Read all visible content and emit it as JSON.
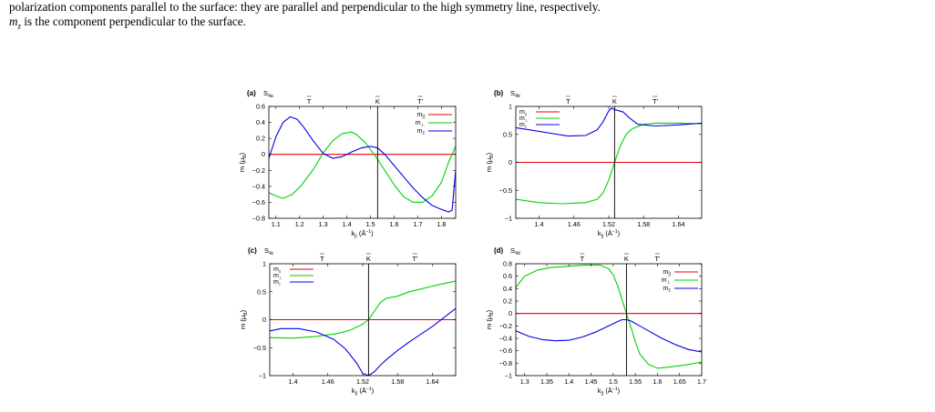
{
  "caption": {
    "line1": "polarization components parallel to the surface: they are parallel and perpendicular to the high symmetry line, respectively.",
    "line2_symbol": "m",
    "line2_sub": "z",
    "line2_rest": " is the component perpendicular to the surface."
  },
  "chart_data": [
    {
      "panel": "(a)",
      "label": "S",
      "label_sub": "4a",
      "type": "line",
      "xlabel_main": "k",
      "xlabel_sub": "||",
      "xlabel_unit": " (Å",
      "xlabel_exp": "−1",
      "xlabel_close": ")",
      "ylabel": "m (μ",
      "ylabel_sub": "B",
      "ylabel_close": ")",
      "xlim": [
        1.07,
        1.86
      ],
      "ylim": [
        -0.8,
        0.6
      ],
      "xticks": [
        1.1,
        1.2,
        1.3,
        1.4,
        1.5,
        1.6,
        1.7,
        1.8
      ],
      "xtick_labels": [
        "1.1",
        "1.2",
        "1.3",
        "1.4",
        "1.5",
        "1.6",
        "1.7",
        "1.8"
      ],
      "yticks": [
        -0.8,
        -0.6,
        -0.4,
        -0.2,
        0,
        0.2,
        0.4,
        0.6
      ],
      "ytick_labels": [
        "−0.8",
        "−0.6",
        "−0.4",
        "−0.2",
        "0",
        "0.2",
        "0.4",
        "0.6"
      ],
      "vline": 1.53,
      "top_labels": [
        {
          "text": "T",
          "x": 1.24
        },
        {
          "text": "K",
          "x": 1.53
        },
        {
          "text": "T'",
          "x": 1.71
        }
      ],
      "legend": [
        "m||",
        "m⊥",
        "mz"
      ],
      "series": [
        {
          "name": "m||",
          "color": "#e8000b",
          "x": [
            1.07,
            1.86
          ],
          "y": [
            0,
            0
          ]
        },
        {
          "name": "m⊥",
          "color": "#00d200",
          "x": [
            1.07,
            1.1,
            1.13,
            1.17,
            1.21,
            1.26,
            1.3,
            1.34,
            1.38,
            1.42,
            1.44,
            1.48,
            1.52,
            1.56,
            1.6,
            1.64,
            1.68,
            1.72,
            1.76,
            1.8,
            1.83,
            1.86
          ],
          "y": [
            -0.48,
            -0.52,
            -0.55,
            -0.5,
            -0.38,
            -0.18,
            0.02,
            0.17,
            0.26,
            0.28,
            0.25,
            0.14,
            -0.02,
            -0.2,
            -0.38,
            -0.53,
            -0.6,
            -0.6,
            -0.52,
            -0.35,
            -0.1,
            0.1
          ]
        },
        {
          "name": "mz",
          "color": "#0000e6",
          "x": [
            1.07,
            1.1,
            1.13,
            1.16,
            1.19,
            1.22,
            1.26,
            1.3,
            1.34,
            1.38,
            1.42,
            1.46,
            1.5,
            1.53,
            1.56,
            1.6,
            1.64,
            1.68,
            1.72,
            1.76,
            1.8,
            1.83,
            1.845,
            1.86
          ],
          "y": [
            -0.05,
            0.22,
            0.4,
            0.47,
            0.44,
            0.33,
            0.16,
            0.01,
            -0.05,
            -0.03,
            0.03,
            0.08,
            0.1,
            0.08,
            0.0,
            -0.14,
            -0.28,
            -0.42,
            -0.54,
            -0.64,
            -0.69,
            -0.72,
            -0.7,
            -0.2
          ]
        }
      ]
    },
    {
      "panel": "(b)",
      "label": "S",
      "label_sub": "4b",
      "type": "line",
      "xlabel_main": "k",
      "xlabel_sub": "||",
      "xlabel_unit": " (Å",
      "xlabel_exp": "−1",
      "xlabel_close": ")",
      "ylabel": "m (μ",
      "ylabel_sub": "B",
      "ylabel_close": ")",
      "xlim": [
        1.36,
        1.68
      ],
      "ylim": [
        -1,
        1
      ],
      "xticks": [
        1.4,
        1.46,
        1.52,
        1.58,
        1.64
      ],
      "xtick_labels": [
        "1.4",
        "1.46",
        "1.52",
        "1.58",
        "1.64"
      ],
      "yticks": [
        -1,
        -0.5,
        0,
        0.5,
        1
      ],
      "ytick_labels": [
        "−1",
        "−0.5",
        "0",
        "0.5",
        "1"
      ],
      "vline": 1.53,
      "top_labels": [
        {
          "text": "T",
          "x": 1.45
        },
        {
          "text": "K",
          "x": 1.53
        },
        {
          "text": "T'",
          "x": 1.6
        }
      ],
      "legend": [
        "m||",
        "m⊥",
        "mz"
      ],
      "series": [
        {
          "name": "m||",
          "color": "#e8000b",
          "x": [
            1.36,
            1.68
          ],
          "y": [
            0,
            0
          ]
        },
        {
          "name": "m⊥",
          "color": "#00d200",
          "x": [
            1.36,
            1.4,
            1.44,
            1.48,
            1.5,
            1.51,
            1.52,
            1.53,
            1.54,
            1.55,
            1.56,
            1.58,
            1.6,
            1.64,
            1.68
          ],
          "y": [
            -0.66,
            -0.72,
            -0.74,
            -0.72,
            -0.66,
            -0.55,
            -0.32,
            0.0,
            0.3,
            0.5,
            0.6,
            0.68,
            0.7,
            0.7,
            0.69
          ]
        },
        {
          "name": "mz",
          "color": "#0000e6",
          "x": [
            1.36,
            1.39,
            1.42,
            1.45,
            1.48,
            1.5,
            1.51,
            1.52,
            1.525,
            1.53,
            1.535,
            1.545,
            1.555,
            1.57,
            1.6,
            1.64,
            1.68
          ],
          "y": [
            0.62,
            0.57,
            0.52,
            0.47,
            0.48,
            0.58,
            0.72,
            0.92,
            0.97,
            0.94,
            0.93,
            0.9,
            0.8,
            0.68,
            0.65,
            0.67,
            0.7
          ]
        }
      ]
    },
    {
      "panel": "(c)",
      "label": "S",
      "label_sub": "4c",
      "type": "line",
      "xlabel_main": "k",
      "xlabel_sub": "||",
      "xlabel_unit": " (Å",
      "xlabel_exp": "−1",
      "xlabel_close": ")",
      "ylabel": "m (μ",
      "ylabel_sub": "B",
      "ylabel_close": ")",
      "xlim": [
        1.36,
        1.68
      ],
      "ylim": [
        -1,
        1
      ],
      "xticks": [
        1.4,
        1.46,
        1.52,
        1.58,
        1.64
      ],
      "xtick_labels": [
        "1.4",
        "1.46",
        "1.52",
        "1.58",
        "1.64"
      ],
      "yticks": [
        -1,
        -0.5,
        0,
        0.5,
        1
      ],
      "ytick_labels": [
        "−1",
        "−0.5",
        "0",
        "0.5",
        "1"
      ],
      "vline": 1.53,
      "top_labels": [
        {
          "text": "T",
          "x": 1.45
        },
        {
          "text": "K",
          "x": 1.53
        },
        {
          "text": "T'",
          "x": 1.61
        }
      ],
      "legend": [
        "m||",
        "m⊥",
        "mz"
      ],
      "series": [
        {
          "name": "m||",
          "color": "#e8000b",
          "x": [
            1.36,
            1.68
          ],
          "y": [
            0,
            0
          ]
        },
        {
          "name": "m⊥",
          "color": "#00d200",
          "x": [
            1.36,
            1.4,
            1.44,
            1.48,
            1.5,
            1.52,
            1.53,
            1.54,
            1.55,
            1.56,
            1.58,
            1.6,
            1.64,
            1.68
          ],
          "y": [
            -0.32,
            -0.33,
            -0.3,
            -0.24,
            -0.18,
            -0.08,
            0.0,
            0.15,
            0.3,
            0.38,
            0.42,
            0.5,
            0.6,
            0.69
          ]
        },
        {
          "name": "mz",
          "color": "#0000e6",
          "x": [
            1.36,
            1.38,
            1.41,
            1.44,
            1.47,
            1.49,
            1.51,
            1.52,
            1.53,
            1.54,
            1.55,
            1.56,
            1.58,
            1.6,
            1.64,
            1.68
          ],
          "y": [
            -0.2,
            -0.16,
            -0.16,
            -0.22,
            -0.35,
            -0.52,
            -0.78,
            -0.96,
            -1.0,
            -0.93,
            -0.82,
            -0.72,
            -0.55,
            -0.4,
            -0.12,
            0.2
          ]
        }
      ]
    },
    {
      "panel": "(d)",
      "label": "S",
      "label_sub": "4d",
      "type": "line",
      "xlabel_main": "k",
      "xlabel_sub": "||",
      "xlabel_unit": " (Å",
      "xlabel_exp": "−1",
      "xlabel_close": ")",
      "ylabel": "m (μ",
      "ylabel_sub": "B",
      "ylabel_close": ")",
      "xlim": [
        1.28,
        1.7
      ],
      "ylim": [
        -1,
        0.8
      ],
      "xticks": [
        1.3,
        1.35,
        1.4,
        1.45,
        1.5,
        1.55,
        1.6,
        1.65,
        1.7
      ],
      "xtick_labels": [
        "1.3",
        "1.35",
        "1.4",
        "1.45",
        "1.5",
        "1.55",
        "1.6",
        "1.65",
        "1.7"
      ],
      "yticks": [
        -1,
        -0.8,
        -0.6,
        -0.4,
        -0.2,
        0,
        0.2,
        0.4,
        0.6,
        0.8
      ],
      "ytick_labels": [
        "−1",
        "−0.8",
        "−0.6",
        "−0.4",
        "−0.2",
        "0",
        "0.2",
        "0.4",
        "0.6",
        "0.8"
      ],
      "vline": 1.53,
      "top_labels": [
        {
          "text": "T",
          "x": 1.43
        },
        {
          "text": "K",
          "x": 1.53
        },
        {
          "text": "T'",
          "x": 1.6
        }
      ],
      "legend": [
        "m||",
        "m⊥",
        "mz"
      ],
      "series": [
        {
          "name": "m||",
          "color": "#e8000b",
          "x": [
            1.28,
            1.7
          ],
          "y": [
            0,
            0
          ]
        },
        {
          "name": "m⊥",
          "color": "#00d200",
          "x": [
            1.28,
            1.3,
            1.33,
            1.36,
            1.4,
            1.44,
            1.47,
            1.49,
            1.5,
            1.51,
            1.52,
            1.53,
            1.54,
            1.55,
            1.56,
            1.58,
            1.6,
            1.63,
            1.67,
            1.7
          ],
          "y": [
            0.42,
            0.6,
            0.7,
            0.74,
            0.76,
            0.78,
            0.78,
            0.72,
            0.62,
            0.45,
            0.22,
            0.0,
            -0.22,
            -0.45,
            -0.65,
            -0.82,
            -0.88,
            -0.86,
            -0.82,
            -0.78
          ]
        },
        {
          "name": "mz",
          "color": "#0000e6",
          "x": [
            1.28,
            1.31,
            1.34,
            1.37,
            1.4,
            1.43,
            1.46,
            1.49,
            1.51,
            1.52,
            1.53,
            1.54,
            1.56,
            1.58,
            1.61,
            1.64,
            1.67,
            1.7
          ],
          "y": [
            -0.28,
            -0.37,
            -0.42,
            -0.44,
            -0.43,
            -0.38,
            -0.3,
            -0.2,
            -0.13,
            -0.1,
            -0.1,
            -0.12,
            -0.2,
            -0.28,
            -0.4,
            -0.5,
            -0.58,
            -0.62
          ]
        }
      ]
    }
  ]
}
